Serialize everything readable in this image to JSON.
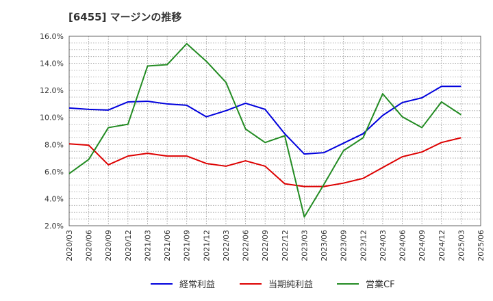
{
  "chart_data": {
    "type": "line",
    "title": "[6455]  マージンの推移",
    "categories": [
      "2020/03",
      "2020/06",
      "2020/09",
      "2020/12",
      "2021/03",
      "2021/06",
      "2021/09",
      "2021/12",
      "2022/03",
      "2022/06",
      "2022/09",
      "2022/12",
      "2023/03",
      "2023/06",
      "2023/09",
      "2023/12",
      "2024/03",
      "2024/06",
      "2024/09",
      "2024/12",
      "2025/03",
      "2025/06"
    ],
    "y_ticks": [
      "2.0%",
      "4.0%",
      "6.0%",
      "8.0%",
      "10.0%",
      "12.0%",
      "14.0%",
      "16.0%"
    ],
    "ylim": [
      2,
      16
    ],
    "grid": true,
    "legend_position": "bottom",
    "series": [
      {
        "name": "経常利益",
        "color": "#0000dd",
        "values": [
          10.7,
          10.6,
          10.55,
          11.15,
          11.2,
          11.0,
          10.9,
          10.05,
          10.5,
          11.05,
          10.6,
          8.8,
          7.3,
          7.4,
          8.1,
          8.8,
          10.15,
          11.1,
          11.45,
          12.3,
          12.3,
          null
        ]
      },
      {
        "name": "当期純利益",
        "color": "#dd0000",
        "values": [
          8.05,
          7.95,
          6.5,
          7.15,
          7.35,
          7.15,
          7.15,
          6.6,
          6.4,
          6.8,
          6.4,
          5.1,
          4.9,
          4.9,
          5.15,
          5.5,
          6.3,
          7.1,
          7.45,
          8.15,
          8.5,
          null
        ]
      },
      {
        "name": "営業CF",
        "color": "#228b22",
        "values": [
          5.85,
          6.9,
          9.25,
          9.5,
          13.8,
          13.9,
          15.45,
          14.15,
          12.6,
          9.15,
          8.15,
          8.65,
          2.65,
          5.05,
          7.55,
          8.5,
          11.75,
          10.05,
          9.25,
          11.15,
          10.2,
          null
        ]
      }
    ]
  }
}
